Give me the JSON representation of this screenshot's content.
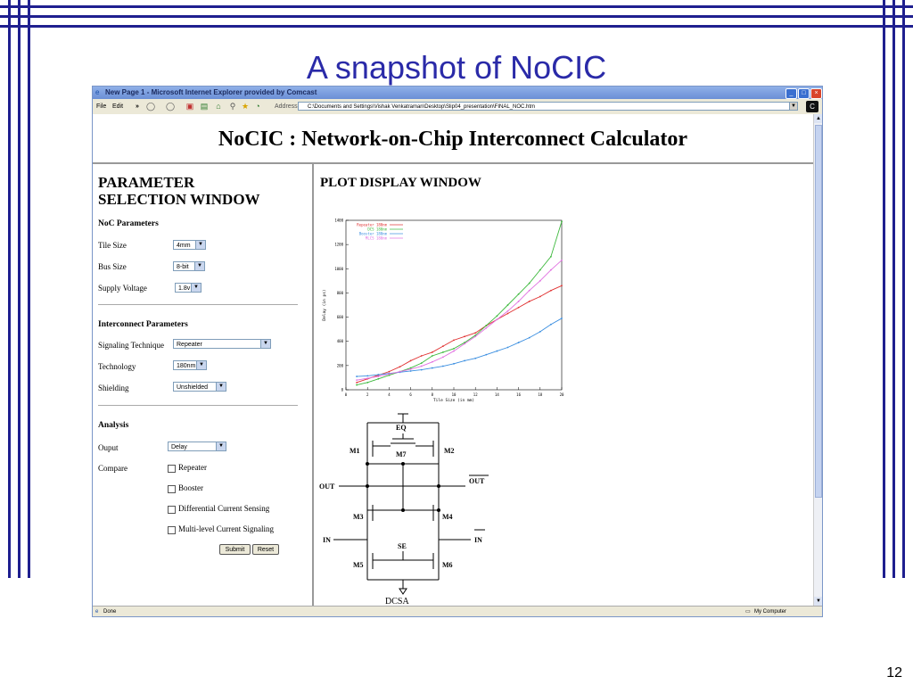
{
  "slide": {
    "title": "A snapshot of NoCIC",
    "page_number": "12"
  },
  "browser": {
    "window_title": "New Page 1 - Microsoft Internet Explorer provided by Comcast",
    "menu": [
      "File",
      "Edit"
    ],
    "address_label": "Address",
    "address": "C:\\Documents and Settings\\Vishak Venkatraman\\Desktop\\Slip04_presentation\\FINAL_NOC.htm",
    "status_left": "Done",
    "status_right": "My Computer"
  },
  "page": {
    "heading": "NoCIC : Network-on-Chip Interconnect Calculator",
    "param_title_1": "PARAMETER",
    "param_title_2": "SELECTION WINDOW",
    "plot_title": "PLOT DISPLAY WINDOW",
    "noc_section": "NoC Parameters",
    "tile_size_label": "Tile Size",
    "tile_size_value": "4mm",
    "bus_size_label": "Bus Size",
    "bus_size_value": "8-bit",
    "supply_label": "Supply Voltage",
    "supply_value": "1.8v",
    "interconnect_section": "Interconnect Parameters",
    "signaling_label": "Signaling Technique",
    "signaling_value": "Repeater",
    "technology_label": "Technology",
    "technology_value": "180nm",
    "shielding_label": "Shielding",
    "shielding_value": "Unshielded",
    "analysis_section": "Analysis",
    "output_label": "Ouput",
    "output_value": "Delay",
    "compare_label": "Compare",
    "compare_options": [
      "Repeater",
      "Booster",
      "Differential Current Sensing",
      "Multi-level Current Signaling"
    ],
    "submit_label": "Submit",
    "reset_label": "Reset"
  },
  "circuit": {
    "labels": {
      "eq": "EQ",
      "m1": "M1",
      "m2": "M2",
      "m7": "M7",
      "out": "OUT",
      "out_bar": "OUT",
      "m3": "M3",
      "m4": "M4",
      "in": "IN",
      "in_bar": "IN",
      "se": "SE",
      "m5": "M5",
      "m6": "M6",
      "caption": "DCSA"
    }
  },
  "chart_data": {
    "type": "line",
    "xlabel": "Tile Size (in mm)",
    "ylabel": "Delay (in ps)",
    "xlim": [
      0,
      20
    ],
    "ylim": [
      0,
      1400
    ],
    "xticks": [
      0,
      2,
      4,
      6,
      8,
      10,
      12,
      14,
      16,
      18,
      20
    ],
    "yticks": [
      0,
      200,
      400,
      600,
      800,
      1000,
      1200,
      1400
    ],
    "legend_position": "top-left",
    "x": [
      1,
      2,
      3,
      4,
      5,
      6,
      7,
      8,
      9,
      10,
      11,
      12,
      13,
      14,
      15,
      16,
      17,
      18,
      19,
      20
    ],
    "series": [
      {
        "name": "Repeater 180nm",
        "color": "#e03030",
        "values": [
          60,
          90,
          120,
          150,
          190,
          240,
          280,
          310,
          360,
          410,
          440,
          470,
          530,
          580,
          630,
          680,
          730,
          770,
          820,
          860
        ]
      },
      {
        "name": "DCS 180nm",
        "color": "#3cb83c",
        "values": [
          40,
          60,
          90,
          120,
          150,
          180,
          220,
          280,
          310,
          340,
          390,
          450,
          530,
          610,
          700,
          790,
          880,
          990,
          1100,
          1390
        ]
      },
      {
        "name": "Booster 180nm",
        "color": "#3a8ee0",
        "values": [
          110,
          115,
          125,
          135,
          145,
          155,
          165,
          180,
          195,
          215,
          240,
          260,
          290,
          320,
          350,
          390,
          430,
          480,
          540,
          590
        ]
      },
      {
        "name": "MLCS 180nm",
        "color": "#e070e0",
        "values": [
          80,
          95,
          110,
          130,
          150,
          170,
          195,
          230,
          270,
          320,
          380,
          440,
          510,
          580,
          650,
          730,
          820,
          900,
          990,
          1070
        ]
      }
    ]
  }
}
